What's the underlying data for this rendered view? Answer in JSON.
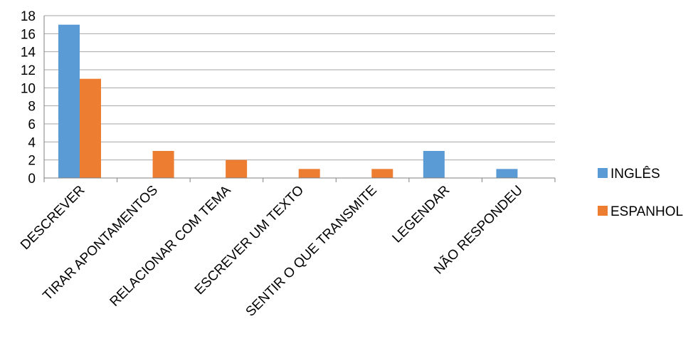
{
  "chart_data": {
    "type": "bar",
    "title": "",
    "xlabel": "",
    "ylabel": "",
    "categories": [
      "DESCREVER",
      "TIRAR APONTAMENTOS",
      "RELACIONAR COM TEMA",
      "ESCREVER UM TEXTO",
      "SENTIR O QUE TRANSMITE",
      "LEGENDAR",
      "NÃO RESPONDEU"
    ],
    "series": [
      {
        "name": "INGLÊS",
        "color": "#5B9BD5",
        "values": [
          17,
          0,
          0,
          0,
          0,
          3,
          1
        ]
      },
      {
        "name": "ESPANHOL",
        "color": "#ED7D31",
        "values": [
          11,
          3,
          2,
          1,
          1,
          0,
          0
        ]
      }
    ],
    "ylim": [
      0,
      18
    ],
    "yticks": [
      0,
      2,
      4,
      6,
      8,
      10,
      12,
      14,
      16,
      18
    ],
    "grid": true,
    "legend_position": "right"
  }
}
